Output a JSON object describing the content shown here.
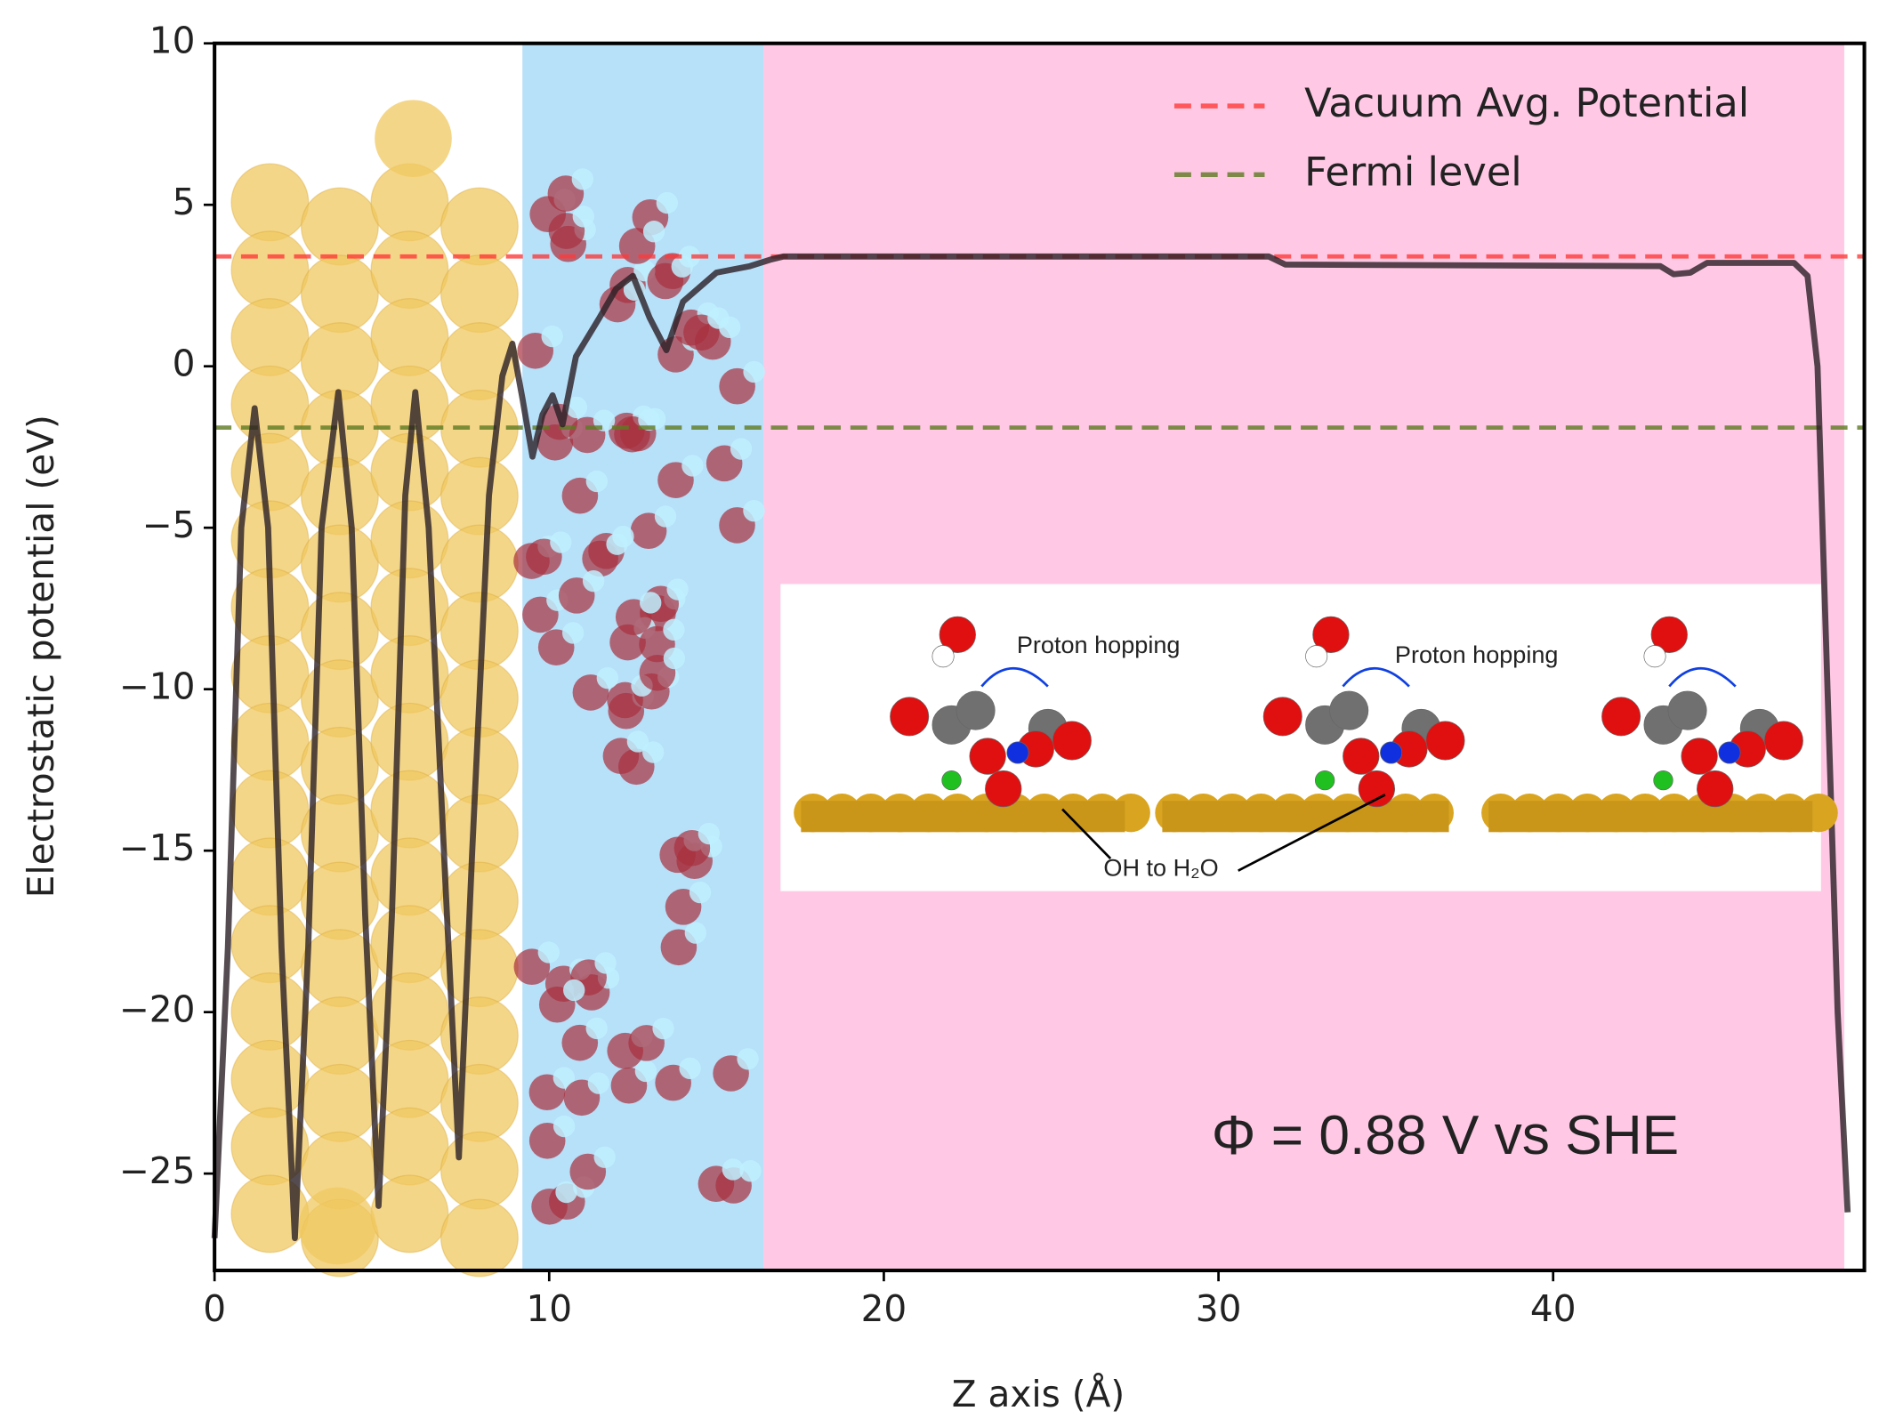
{
  "chart_data": {
    "type": "line",
    "x_label": "Z axis (Å)",
    "y_label": "Electrostatic potential (eV)",
    "xlim": [
      0,
      49.3
    ],
    "ylim": [
      -28,
      10
    ],
    "xticks": [
      0,
      10,
      20,
      30,
      40
    ],
    "yticks": [
      {
        "value": -25,
        "label": "−25"
      },
      {
        "value": -20,
        "label": "−20"
      },
      {
        "value": -15,
        "label": "−15"
      },
      {
        "value": -10,
        "label": "−10"
      },
      {
        "value": -5,
        "label": "−5"
      },
      0,
      5,
      10
    ],
    "x": [
      0,
      0.4,
      0.8,
      1.2,
      1.6,
      2.0,
      2.4,
      2.8,
      3.2,
      3.7,
      4.1,
      4.5,
      4.9,
      5.3,
      5.7,
      6.0,
      6.4,
      6.9,
      7.3,
      7.7,
      8.2,
      8.6,
      8.9,
      9.2,
      9.5,
      9.8,
      10.1,
      10.4,
      10.8,
      11.5,
      12,
      12.5,
      13,
      13.5,
      14,
      15,
      16,
      16.6,
      17,
      31.5,
      32,
      43.2,
      43.6,
      44.1,
      44.6,
      47.2,
      47.6,
      47.9,
      48.2,
      48.5,
      48.8
    ],
    "series": [
      {
        "color": "#2b1f25",
        "values": [
          -27,
          -18,
          -5,
          -1.3,
          -5,
          -18,
          -27,
          -18,
          -5,
          -0.8,
          -5,
          -17,
          -26,
          -17,
          -4,
          -0.8,
          -5,
          -16,
          -24.5,
          -15,
          -4,
          -0.3,
          0.7,
          -1,
          -2.8,
          -1.5,
          -0.9,
          -1.8,
          0.3,
          1.5,
          2.4,
          2.8,
          1.5,
          0.5,
          2,
          2.9,
          3.1,
          3.3,
          3.4,
          3.4,
          3.15,
          3.1,
          2.85,
          2.9,
          3.2,
          3.2,
          2.8,
          0,
          -10,
          -20,
          -26.2
        ]
      }
    ],
    "reference_lines": [
      {
        "name": "Vacuum Avg. Potential",
        "color": "#ff3b3b",
        "value": 3.4
      },
      {
        "name": "Fermi level",
        "color": "#5f7a22",
        "value": -1.9
      }
    ],
    "spans": [
      {
        "start": 9.2,
        "end": 16.4,
        "color": "#b7e0f9"
      },
      {
        "start": 16.4,
        "end": 48.7,
        "color": "#ffc9e5"
      }
    ],
    "legend": "upper right",
    "annotations": [
      "Φ = 0.88 V vs SHE",
      "Proton hopping",
      "Proton hopping",
      "OH to H₂O"
    ]
  }
}
